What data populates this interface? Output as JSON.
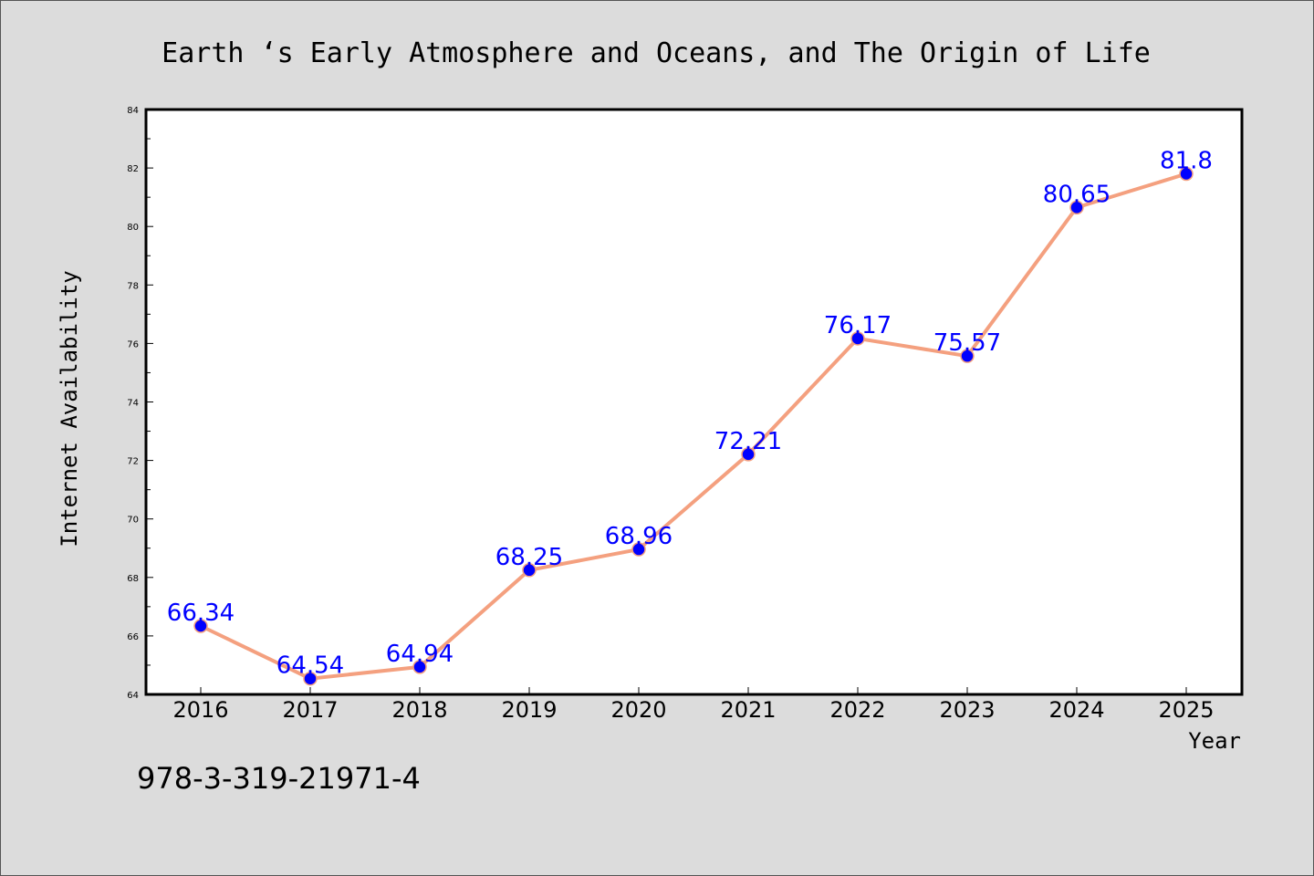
{
  "colors": {
    "background": "#dcdcdc",
    "line": "#f4a07f",
    "marker": "#0000ff",
    "data_label": "#0000ff",
    "axes": "#000000"
  },
  "footer_text": "978-3-319-21971-4",
  "chart_data": {
    "type": "line",
    "title": "Earth ‘s Early Atmosphere and Oceans, and The Origin of Life",
    "xlabel": "Year",
    "ylabel": "Internet Availability",
    "x": [
      "2016",
      "2017",
      "2018",
      "2019",
      "2020",
      "2021",
      "2022",
      "2023",
      "2024",
      "2025"
    ],
    "series": [
      {
        "values": [
          66.34,
          64.54,
          64.94,
          68.25,
          68.96,
          72.21,
          76.17,
          75.57,
          80.65,
          81.8
        ],
        "labels": [
          "66.34",
          "64.54",
          "64.94",
          "68.25",
          "68.96",
          "72.21",
          "76.17",
          "75.57",
          "80.65",
          "81.8"
        ]
      }
    ],
    "ylim": [
      64,
      84
    ],
    "yticks": [
      "64",
      "66",
      "68",
      "70",
      "72",
      "74",
      "76",
      "78",
      "80",
      "82",
      "84"
    ],
    "grid": false,
    "legend": "none"
  }
}
